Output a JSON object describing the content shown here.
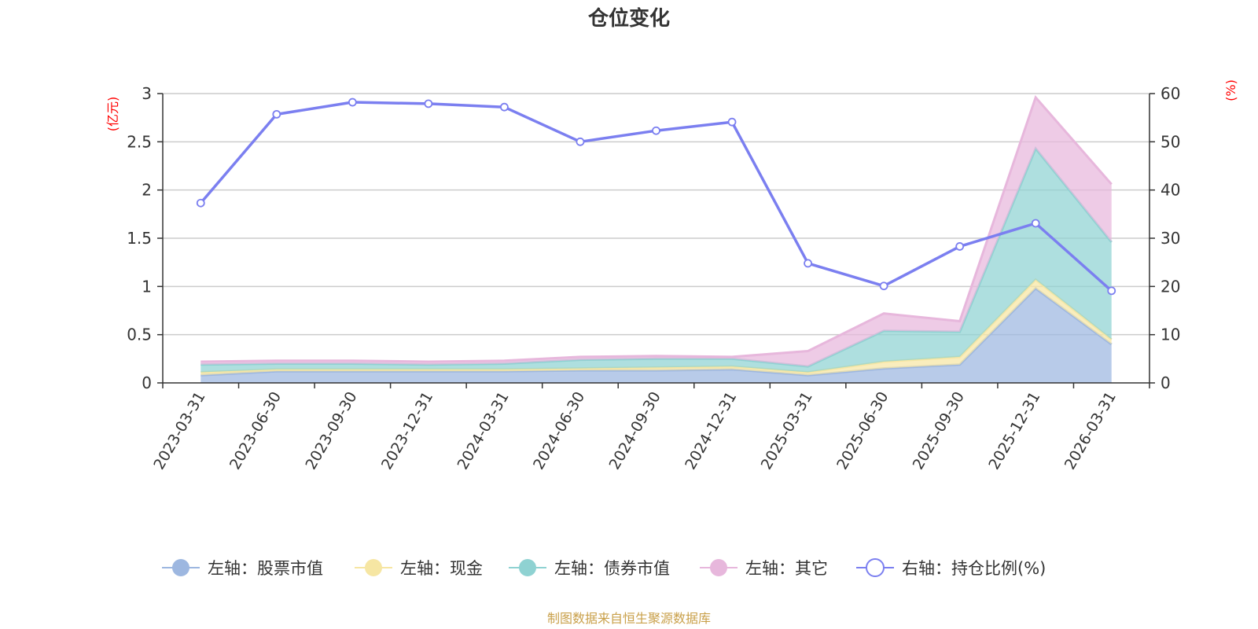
{
  "chart_data": {
    "type": "area",
    "title": "仓位变化",
    "y_left_unit": "(亿元)",
    "y_right_unit": "(%)",
    "y_left_range": [
      0,
      3
    ],
    "y_left_ticks": [
      "0",
      "0.5",
      "1",
      "1.5",
      "2",
      "2.5",
      "3"
    ],
    "y_right_range": [
      0,
      60
    ],
    "y_right_ticks": [
      "0",
      "10",
      "20",
      "30",
      "40",
      "50",
      "60"
    ],
    "grid": true,
    "legend_position": "bottom",
    "stacked": true,
    "categories": [
      "2023-03-31",
      "2023-06-30",
      "2023-09-30",
      "2023-12-31",
      "2024-03-31",
      "2024-06-30",
      "2024-09-30",
      "2024-12-31",
      "2025-03-31",
      "2025-06-30",
      "2025-09-30",
      "2025-12-31",
      "2026-03-31"
    ],
    "series": [
      {
        "name": "左轴：股票市值",
        "axis": "left",
        "kind": "area",
        "color": "#9db7e0",
        "values": [
          0.08,
          0.12,
          0.12,
          0.12,
          0.12,
          0.13,
          0.13,
          0.14,
          0.08,
          0.15,
          0.19,
          0.98,
          0.4
        ]
      },
      {
        "name": "左轴：现金",
        "axis": "left",
        "kind": "area",
        "color": "#f6e6a3",
        "values": [
          0.03,
          0.02,
          0.02,
          0.02,
          0.02,
          0.02,
          0.03,
          0.03,
          0.03,
          0.07,
          0.08,
          0.09,
          0.05
        ]
      },
      {
        "name": "左轴：债券市值",
        "axis": "left",
        "kind": "area",
        "color": "#8fd2d2",
        "values": [
          0.08,
          0.06,
          0.06,
          0.05,
          0.06,
          0.09,
          0.09,
          0.08,
          0.06,
          0.32,
          0.26,
          1.36,
          1.01
        ]
      },
      {
        "name": "左轴：其它",
        "axis": "left",
        "kind": "area",
        "color": "#e7b7dc",
        "values": [
          0.03,
          0.03,
          0.03,
          0.03,
          0.03,
          0.03,
          0.03,
          0.02,
          0.16,
          0.18,
          0.11,
          0.53,
          0.6
        ]
      },
      {
        "name": "右轴：持仓比例(%)",
        "axis": "right",
        "kind": "line",
        "color": "#7b7ff0",
        "values": [
          37.3,
          55.7,
          58.2,
          57.9,
          57.2,
          50.0,
          52.3,
          54.1,
          24.8,
          20.1,
          28.3,
          33.1,
          19.1
        ]
      }
    ]
  },
  "source_text": "制图数据来自恒生聚源数据库"
}
